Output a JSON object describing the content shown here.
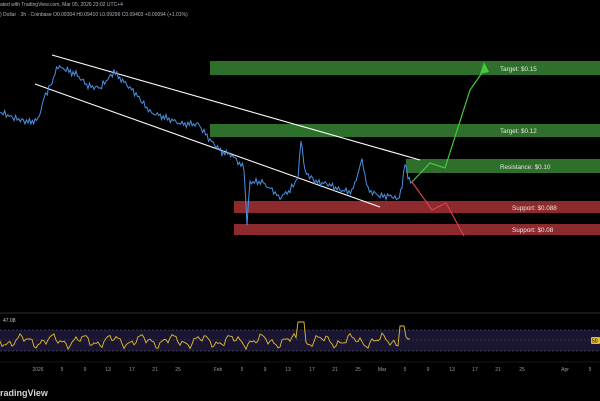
{
  "header": {
    "line1": "ated with TradingView.com, Mar 05, 2026 23:02 UTC+4",
    "line2": ") Dollar · 3h · Coinbase  O0.09304  H0.09410  L0.09296  C0.09403  +0.00094 (+1.01%)"
  },
  "levels": {
    "target_2": {
      "label": "Target: $0.15",
      "value": 0.15,
      "color": "#2f6f2c"
    },
    "target_1": {
      "label": "Target: $0.12",
      "value": 0.12,
      "color": "#2f6f2c"
    },
    "resistance": {
      "label": "Resistance: $0.10",
      "value": 0.1,
      "color": "#2f6f2c"
    },
    "support_1": {
      "label": "Support: $0.088",
      "value": 0.088,
      "color": "#8c2a2d"
    },
    "support_2": {
      "label": "Support: $0.08",
      "value": 0.08,
      "color": "#8c2a2d"
    }
  },
  "colors": {
    "price_line": "#4a90e2",
    "channel": "#ffffff",
    "bull_path": "#44c93c",
    "bear_path": "#e0434c",
    "rsi": "#e3bd2d"
  },
  "rsi": {
    "value": "47.08",
    "badge": "50"
  },
  "time_axis": [
    "2026",
    "5",
    "9",
    "13",
    "17",
    "21",
    "25",
    "Feb",
    "5",
    "9",
    "13",
    "17",
    "21",
    "25",
    "Mar",
    "5",
    "9",
    "13",
    "17",
    "21",
    "25",
    "Apr",
    "5"
  ],
  "footer": {
    "brand": "radingView"
  }
}
